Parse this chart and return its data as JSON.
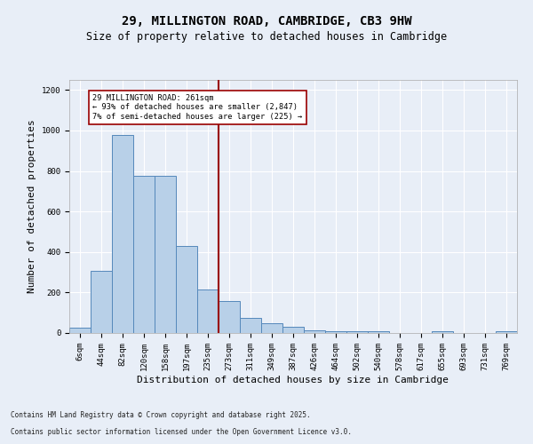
{
  "title": "29, MILLINGTON ROAD, CAMBRIDGE, CB3 9HW",
  "subtitle": "Size of property relative to detached houses in Cambridge",
  "xlabel": "Distribution of detached houses by size in Cambridge",
  "ylabel": "Number of detached properties",
  "categories": [
    "6sqm",
    "44sqm",
    "82sqm",
    "120sqm",
    "158sqm",
    "197sqm",
    "235sqm",
    "273sqm",
    "311sqm",
    "349sqm",
    "387sqm",
    "426sqm",
    "464sqm",
    "502sqm",
    "540sqm",
    "578sqm",
    "617sqm",
    "655sqm",
    "693sqm",
    "731sqm",
    "769sqm"
  ],
  "bar_values": [
    25,
    305,
    980,
    775,
    775,
    430,
    215,
    160,
    75,
    48,
    30,
    15,
    10,
    10,
    10,
    0,
    0,
    10,
    0,
    0,
    10
  ],
  "bar_color": "#b8d0e8",
  "bar_edge_color": "#5588bb",
  "vline_color": "#990000",
  "annotation_text": "29 MILLINGTON ROAD: 261sqm\n← 93% of detached houses are smaller (2,847)\n7% of semi-detached houses are larger (225) →",
  "annotation_box_color": "#ffffff",
  "annotation_box_edge": "#990000",
  "ylim": [
    0,
    1250
  ],
  "yticks": [
    0,
    200,
    400,
    600,
    800,
    1000,
    1200
  ],
  "background_color": "#e8eef7",
  "grid_color": "#ffffff",
  "footer_line1": "Contains HM Land Registry data © Crown copyright and database right 2025.",
  "footer_line2": "Contains public sector information licensed under the Open Government Licence v3.0.",
  "title_fontsize": 10,
  "subtitle_fontsize": 8.5,
  "tick_fontsize": 6.5,
  "label_fontsize": 8,
  "footer_fontsize": 5.5
}
